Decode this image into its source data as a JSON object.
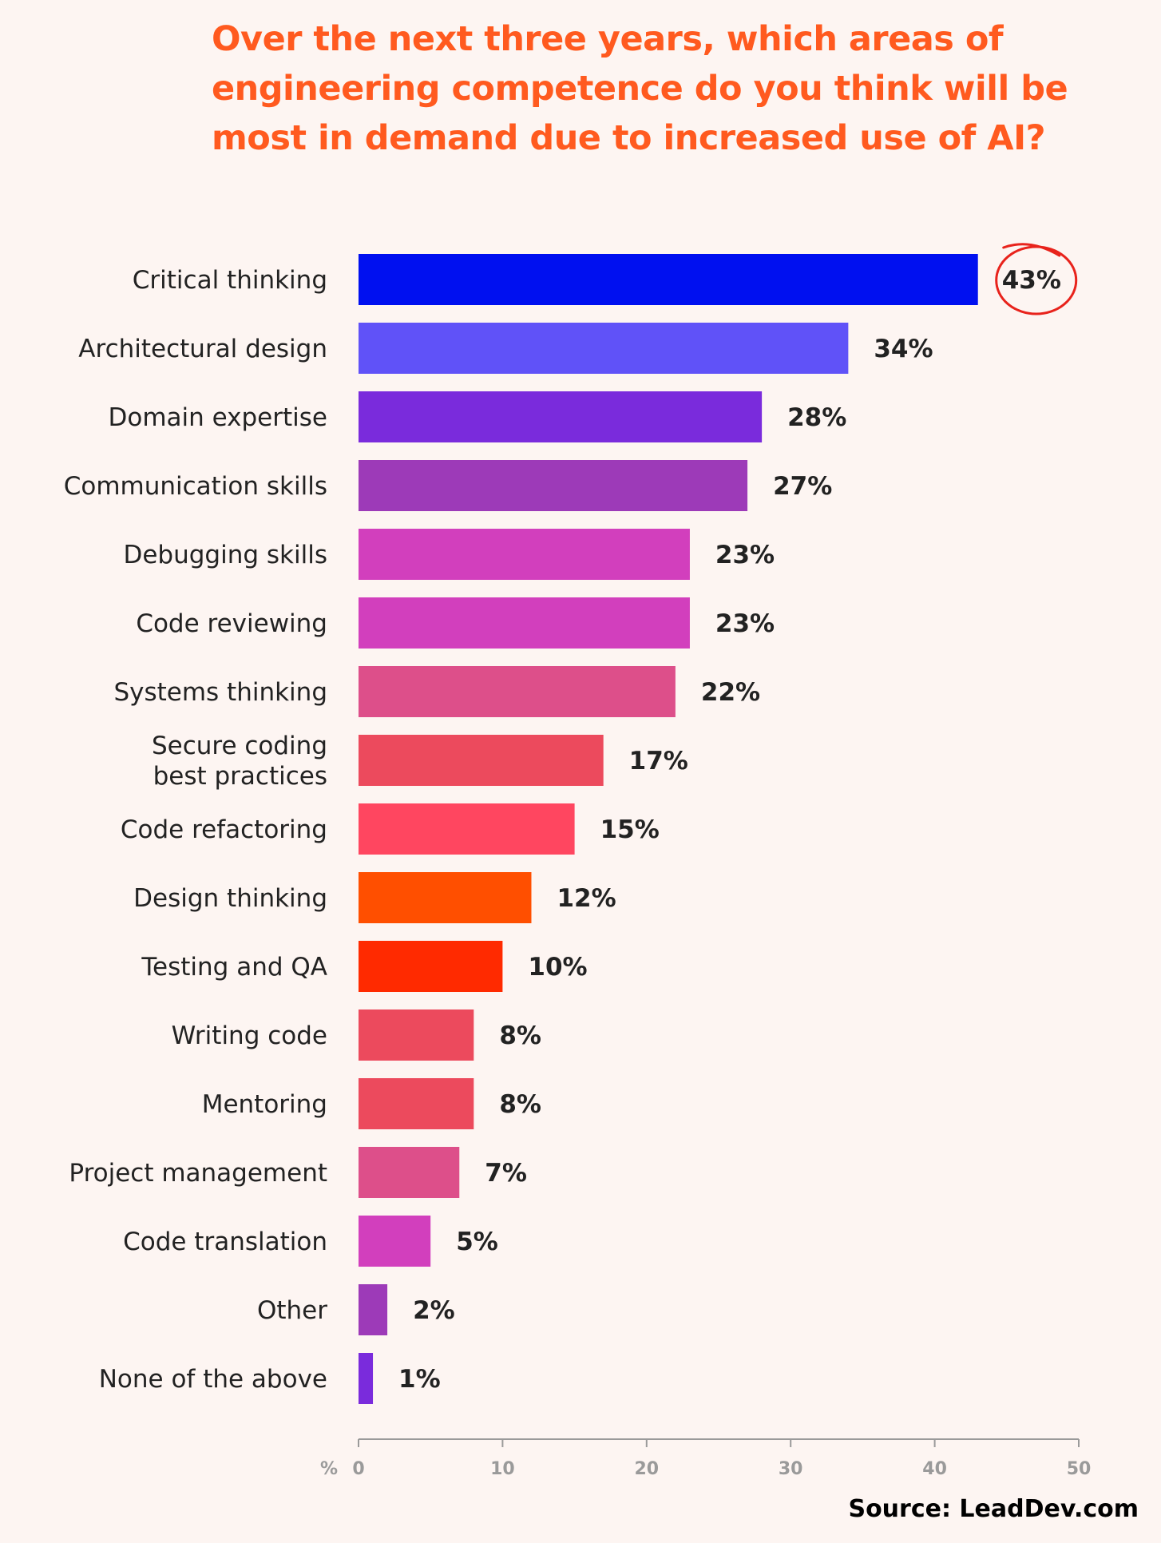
{
  "chart_data": {
    "type": "bar",
    "orientation": "horizontal",
    "title": [
      "Over the next three years, which areas of",
      "engineering competence do you think will be",
      "most in demand due to increased use of AI?"
    ],
    "categories": [
      "Critical thinking",
      "Architectural design",
      "Domain expertise",
      "Communication skills",
      "Debugging skills",
      "Code reviewing",
      "Systems thinking",
      "Secure coding best practices",
      "Code refactoring",
      "Design thinking",
      "Testing and QA",
      "Writing code",
      "Mentoring",
      "Project management",
      "Code translation",
      "Other",
      "None of the above"
    ],
    "values": [
      43,
      34,
      28,
      27,
      23,
      23,
      22,
      17,
      15,
      12,
      10,
      8,
      8,
      7,
      5,
      2,
      1
    ],
    "value_labels": [
      "43%",
      "34%",
      "28%",
      "27%",
      "23%",
      "23%",
      "22%",
      "17%",
      "15%",
      "12%",
      "10%",
      "8%",
      "8%",
      "7%",
      "5%",
      "2%",
      "1%"
    ],
    "colors": [
      "#0010f0",
      "#6052f8",
      "#7a2bdc",
      "#9d3ab8",
      "#d23fbd",
      "#d23fbd",
      "#dd4f8a",
      "#ec4a5d",
      "#ff4660",
      "#ff4f00",
      "#ff2a00",
      "#ec4a5d",
      "#ec4a5d",
      "#dd4f8a",
      "#d23fbd",
      "#9d3ab8",
      "#7a2bdc"
    ],
    "highlighted_category": "Critical thinking",
    "highlight_color": "#e8231c",
    "xlabel": "%",
    "xlim": [
      0,
      50
    ],
    "xticks": [
      0,
      10,
      20,
      30,
      40,
      50
    ],
    "grid": false,
    "legend": "none"
  },
  "colors": {
    "background": "#fdf5f2",
    "title": "#ff5a1f",
    "text": "#222222",
    "axis": "#9a9a9a"
  },
  "footer": {
    "source": "Source: LeadDev.com"
  }
}
